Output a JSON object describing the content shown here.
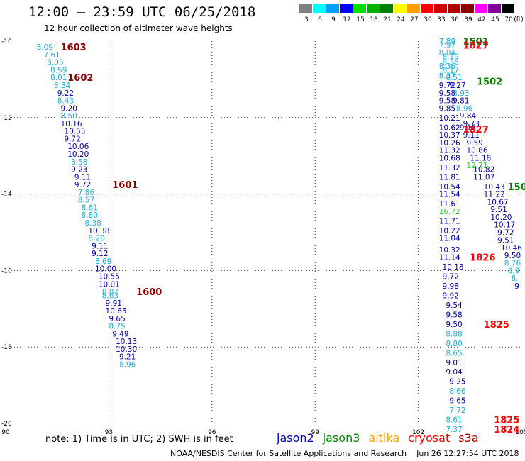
{
  "header": {
    "title": "12:00 – 23:59 UTC 06/25/2018",
    "subtitle": "12 hour collection of altimeter wave heights"
  },
  "colorbar": {
    "unit_label": "(ft)",
    "colors": [
      "#808080",
      "#00ffff",
      "#00a0ff",
      "#0000ff",
      "#00dd00",
      "#00b000",
      "#008000",
      "#ffff00",
      "#ffa000",
      "#ff0000",
      "#d00000",
      "#b00000",
      "#8b0000",
      "#ff00ff",
      "#8000a0",
      "#000000"
    ],
    "labels": [
      "3",
      "6",
      "9",
      "12",
      "15",
      "18",
      "21",
      "24",
      "27",
      "30",
      "33",
      "36",
      "39",
      "42",
      "45",
      "70"
    ]
  },
  "note": "note:  1) Time is in UTC;  2) SWH is in feet",
  "legend": [
    {
      "label": "jason2",
      "color": "#0000cc"
    },
    {
      "label": "jason3",
      "color": "#008800"
    },
    {
      "label": "altika",
      "color": "#ffa000"
    },
    {
      "label": "cryosat",
      "color": "#ff0000"
    },
    {
      "label": "s3a",
      "color": "#aa0000"
    }
  ],
  "footer": "NOAA/NESDIS Center for Satellite Applications and Research    Jun 26 12:27:54 UTC 2018",
  "chart_data": {
    "type": "scatter",
    "title": "12:00 – 23:59 UTC 06/25/2018",
    "subtitle": "12 hour collection of altimeter wave heights",
    "xlim": [
      90,
      105
    ],
    "ylim": [
      -20,
      -10
    ],
    "x_ticks": [
      "90",
      "93",
      "96",
      "99",
      "102",
      "105"
    ],
    "y_ticks": [
      "-10",
      "-12",
      "-14",
      "-16",
      "-18",
      "-20"
    ],
    "grid": true,
    "colors": {
      "lt6": "#1ab0e0",
      "lt12": "#0000aa",
      "lt15": "#22cc22"
    },
    "tracks": [
      {
        "pts": [
          [
            90.9,
            -10.15,
            "8.09"
          ],
          [
            91.1,
            -10.35,
            "7.61"
          ],
          [
            91.2,
            -10.55,
            "8.03"
          ],
          [
            91.3,
            -10.75,
            "8.59"
          ],
          [
            91.3,
            -10.95,
            "8.01"
          ],
          [
            91.4,
            -11.15,
            "8.34"
          ],
          [
            91.5,
            -11.35,
            "9.22"
          ],
          [
            91.5,
            -11.55,
            "8.43"
          ],
          [
            91.6,
            -11.75,
            "9.20"
          ],
          [
            91.6,
            -11.95,
            "8.50"
          ],
          [
            91.6,
            -12.15,
            "10.16"
          ],
          [
            91.7,
            -12.35,
            "10.55"
          ],
          [
            91.7,
            -12.55,
            "9.72"
          ],
          [
            91.8,
            -12.75,
            "10.06"
          ],
          [
            91.8,
            -12.95,
            "10.20"
          ],
          [
            91.9,
            -13.15,
            "8.58"
          ],
          [
            91.9,
            -13.35,
            "9.23"
          ],
          [
            92.0,
            -13.55,
            "9.11"
          ],
          [
            92.0,
            -13.75,
            "9.72"
          ],
          [
            92.1,
            -13.95,
            "7.86"
          ],
          [
            92.1,
            -14.15,
            "8.57"
          ],
          [
            92.2,
            -14.35,
            "8.61"
          ],
          [
            92.2,
            -14.55,
            "8.80"
          ],
          [
            92.3,
            -14.75,
            "8.38"
          ],
          [
            92.4,
            -14.95,
            "10.38"
          ],
          [
            92.4,
            -15.15,
            "8.20"
          ],
          [
            92.5,
            -15.35,
            "9.11"
          ],
          [
            92.5,
            -15.55,
            "9.12"
          ],
          [
            92.6,
            -15.75,
            "8.69"
          ],
          [
            92.6,
            -15.95,
            "10.00"
          ],
          [
            92.7,
            -16.15,
            "10.55"
          ],
          [
            92.7,
            -16.35,
            "10.01"
          ],
          [
            92.8,
            -16.55,
            "8.87"
          ],
          [
            92.8,
            -16.65,
            "8.63"
          ],
          [
            92.9,
            -16.85,
            "9.91"
          ],
          [
            92.9,
            -17.05,
            "10.65"
          ],
          [
            93.0,
            -17.25,
            "9.65"
          ],
          [
            93.0,
            -17.45,
            "8.75"
          ],
          [
            93.1,
            -17.65,
            "9.49"
          ],
          [
            93.2,
            -17.85,
            "10.13"
          ],
          [
            93.2,
            -18.05,
            "10.30"
          ],
          [
            93.3,
            -18.25,
            "9.21"
          ],
          [
            93.3,
            -18.45,
            "8.96"
          ]
        ]
      },
      {
        "pts": [
          [
            102.6,
            -10.0,
            "7.89"
          ],
          [
            102.6,
            -10.1,
            "7.97"
          ],
          [
            102.6,
            -10.3,
            "8.04"
          ],
          [
            102.7,
            -10.4,
            "8.19"
          ],
          [
            102.7,
            -10.55,
            "8.36"
          ],
          [
            102.6,
            -10.65,
            "8.36"
          ],
          [
            102.7,
            -10.75,
            "8.17"
          ],
          [
            102.6,
            -10.9,
            "8.37"
          ],
          [
            102.8,
            -10.95,
            "8.51"
          ],
          [
            102.6,
            -11.15,
            "9.72"
          ],
          [
            102.9,
            -11.15,
            "9.27"
          ],
          [
            102.6,
            -11.35,
            "9.58"
          ],
          [
            103.0,
            -11.35,
            "8.93"
          ],
          [
            102.6,
            -11.55,
            "9.58"
          ],
          [
            103.0,
            -11.55,
            "9.81"
          ],
          [
            102.6,
            -11.75,
            "9.85"
          ],
          [
            103.1,
            -11.75,
            "8.96"
          ],
          [
            103.2,
            -11.95,
            "9.84"
          ],
          [
            102.6,
            -12.0,
            "10.21"
          ],
          [
            103.3,
            -12.15,
            "9.73"
          ],
          [
            102.6,
            -12.25,
            "10.62"
          ],
          [
            103.2,
            -12.25,
            "9.18"
          ],
          [
            102.6,
            -12.45,
            "10.37"
          ],
          [
            103.3,
            -12.45,
            "9.11"
          ],
          [
            102.6,
            -12.65,
            "10.26"
          ],
          [
            103.4,
            -12.65,
            "9.59"
          ],
          [
            102.6,
            -12.85,
            "11.32"
          ],
          [
            103.4,
            -12.85,
            "10.86"
          ],
          [
            102.6,
            -13.05,
            "10.68"
          ],
          [
            103.5,
            -13.05,
            "11.18"
          ],
          [
            103.4,
            -13.25,
            "12.71"
          ],
          [
            102.6,
            -13.3,
            "11.32"
          ],
          [
            103.6,
            -13.35,
            "10.82"
          ],
          [
            102.6,
            -13.55,
            "11.81"
          ],
          [
            103.6,
            -13.55,
            "11.07"
          ],
          [
            102.6,
            -13.8,
            "10.54"
          ],
          [
            103.9,
            -13.8,
            "10.43"
          ],
          [
            102.6,
            -14.0,
            "11.54"
          ],
          [
            103.9,
            -14.0,
            "11.22"
          ],
          [
            104.0,
            -14.2,
            "10.67"
          ],
          [
            102.6,
            -14.25,
            "11.61"
          ],
          [
            104.1,
            -14.4,
            "9.51"
          ],
          [
            102.6,
            -14.45,
            "16.72"
          ],
          [
            104.1,
            -14.6,
            "10.20"
          ],
          [
            102.6,
            -14.7,
            "11.71"
          ],
          [
            104.2,
            -14.8,
            "10.17"
          ],
          [
            102.6,
            -14.95,
            "10.22"
          ],
          [
            104.3,
            -15.0,
            "9.72"
          ],
          [
            102.6,
            -15.15,
            "11.04"
          ],
          [
            104.3,
            -15.2,
            "9.51"
          ],
          [
            102.6,
            -15.45,
            "10.32"
          ],
          [
            104.4,
            -15.4,
            "10.46"
          ],
          [
            104.5,
            -15.6,
            "9.50"
          ],
          [
            102.6,
            -15.65,
            "11.14"
          ],
          [
            104.5,
            -15.8,
            "8.76"
          ],
          [
            102.7,
            -15.9,
            "10.18"
          ],
          [
            104.6,
            -16.0,
            "8.9"
          ],
          [
            102.7,
            -16.15,
            "9.72"
          ],
          [
            104.7,
            -16.2,
            "8."
          ],
          [
            102.7,
            -16.4,
            "9.98"
          ],
          [
            104.8,
            -16.4,
            "9"
          ],
          [
            102.7,
            -16.65,
            "9.92"
          ],
          [
            102.8,
            -16.9,
            "9.54"
          ],
          [
            102.8,
            -17.15,
            "9.58"
          ],
          [
            102.8,
            -17.4,
            "9.50"
          ],
          [
            102.8,
            -17.65,
            "8.88"
          ],
          [
            102.8,
            -17.9,
            "8.80"
          ],
          [
            102.8,
            -18.15,
            "8.65"
          ],
          [
            102.8,
            -18.4,
            "9.01"
          ],
          [
            102.8,
            -18.65,
            "9.04"
          ],
          [
            102.9,
            -18.9,
            "9.25"
          ],
          [
            102.9,
            -19.15,
            "8.66"
          ],
          [
            102.9,
            -19.4,
            "9.65"
          ],
          [
            102.9,
            -19.65,
            "7.72"
          ],
          [
            102.8,
            -19.9,
            "8.61"
          ],
          [
            102.8,
            -20.15,
            "7.37"
          ]
        ]
      }
    ],
    "pass_labels": [
      {
        "x": 91.6,
        "y": -10.15,
        "text": "1603",
        "color": "#8b0000"
      },
      {
        "x": 91.8,
        "y": -10.95,
        "text": "1602",
        "color": "#8b0000"
      },
      {
        "x": 93.1,
        "y": -13.75,
        "text": "1601",
        "color": "#8b0000"
      },
      {
        "x": 93.8,
        "y": -16.55,
        "text": "1600",
        "color": "#8b0000"
      },
      {
        "x": 103.3,
        "y": -10.0,
        "text": "1501",
        "color": "#008000"
      },
      {
        "x": 103.3,
        "y": -10.1,
        "text": "1827",
        "color": "#ff0000"
      },
      {
        "x": 103.7,
        "y": -11.05,
        "text": "1502",
        "color": "#008000"
      },
      {
        "x": 103.3,
        "y": -12.3,
        "text": "1827",
        "color": "#ff0000"
      },
      {
        "x": 104.6,
        "y": -13.8,
        "text": "150",
        "color": "#008000"
      },
      {
        "x": 103.5,
        "y": -15.65,
        "text": "1826",
        "color": "#ff0000"
      },
      {
        "x": 103.9,
        "y": -17.4,
        "text": "1825",
        "color": "#ff0000"
      },
      {
        "x": 104.2,
        "y": -19.9,
        "text": "1825",
        "color": "#ff0000"
      },
      {
        "x": 104.2,
        "y": -20.15,
        "text": "1824",
        "color": "#ff0000"
      }
    ]
  }
}
